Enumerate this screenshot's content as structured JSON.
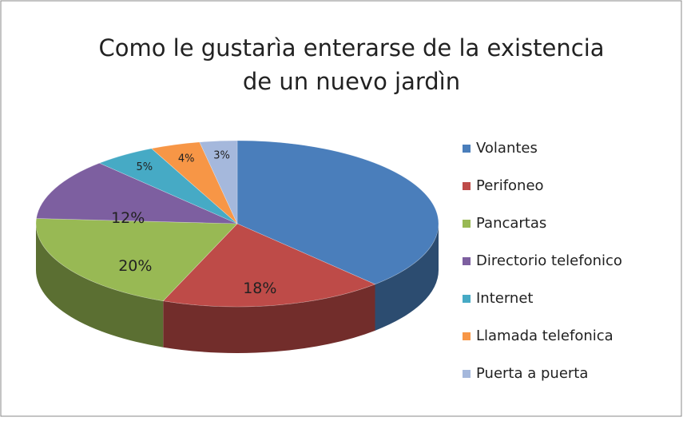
{
  "chart_data": {
    "type": "pie3d",
    "title": [
      "Como le gustarìa enterarse de la existencia",
      "de un nuevo jardìn"
    ],
    "categories": [
      "Volantes",
      "Perifoneo",
      "Pancartas",
      "Directorio telefonico",
      "Internet",
      "Llamada telefonica",
      "Puerta a puerta"
    ],
    "values": [
      38,
      18,
      20,
      12,
      5,
      4,
      3
    ],
    "value_labels": [
      null,
      "18%",
      "20%",
      "12%",
      "5%",
      "4%",
      "3%"
    ],
    "colors": [
      "#4a7ebb",
      "#be4b48",
      "#98b954",
      "#7d5fa0",
      "#46aac5",
      "#f79646",
      "#a5b8dc"
    ],
    "legend": "right"
  }
}
